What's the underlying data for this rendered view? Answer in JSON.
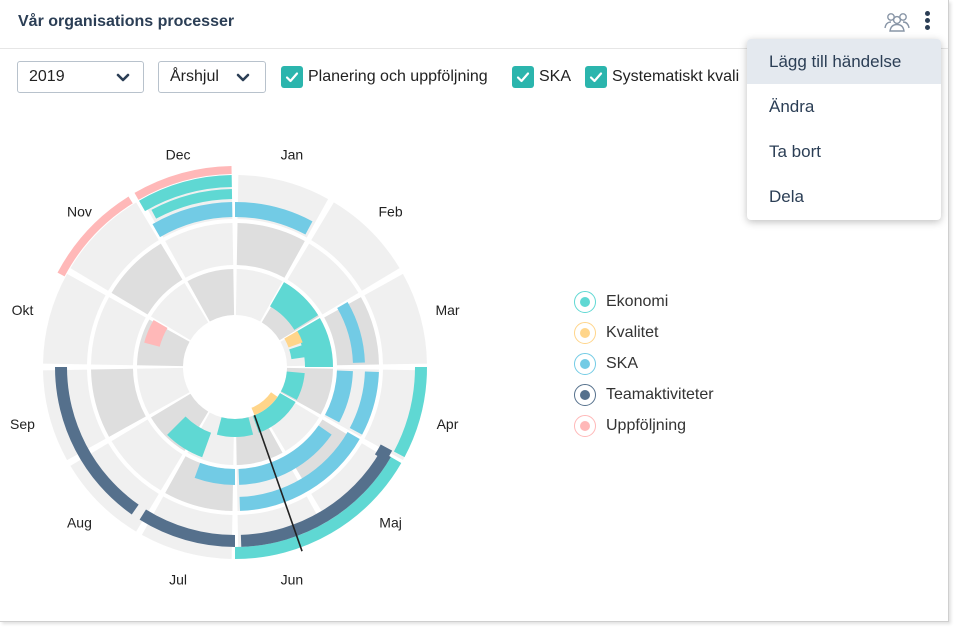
{
  "header": {
    "title": "Vår organisations processer",
    "icons": [
      "people-icon",
      "kebab-menu-icon"
    ]
  },
  "filters": {
    "year": "2019",
    "view": "Årshjul",
    "checkboxes": [
      {
        "label": "Planering och uppföljning",
        "checked": true
      },
      {
        "label": "SKA",
        "checked": true
      },
      {
        "label": "Systematiskt kvali",
        "checked": true
      }
    ]
  },
  "menu": {
    "items": [
      "Lägg till händelse",
      "Ändra",
      "Ta bort",
      "Dela"
    ],
    "highlighted": "Lägg till händelse"
  },
  "wheel": {
    "months": [
      "Jan",
      "Feb",
      "Mar",
      "Apr",
      "Maj",
      "Jun",
      "Jul",
      "Aug",
      "Sep",
      "Okt",
      "Nov",
      "Dec"
    ]
  },
  "legend": [
    {
      "label": "Ekonomi",
      "color": "#5fd8d3"
    },
    {
      "label": "Kvalitet",
      "color": "#ffd58a"
    },
    {
      "label": "SKA",
      "color": "#72cbe5"
    },
    {
      "label": "Teamaktiviteter",
      "color": "#55708c"
    },
    {
      "label": "Uppföljning",
      "color": "#ffb8b8"
    }
  ],
  "colors": {
    "ring_light": "#f0f0f0",
    "ring_mid": "#dedede",
    "accent": "#2bb5ad",
    "title": "#2b3e55"
  }
}
